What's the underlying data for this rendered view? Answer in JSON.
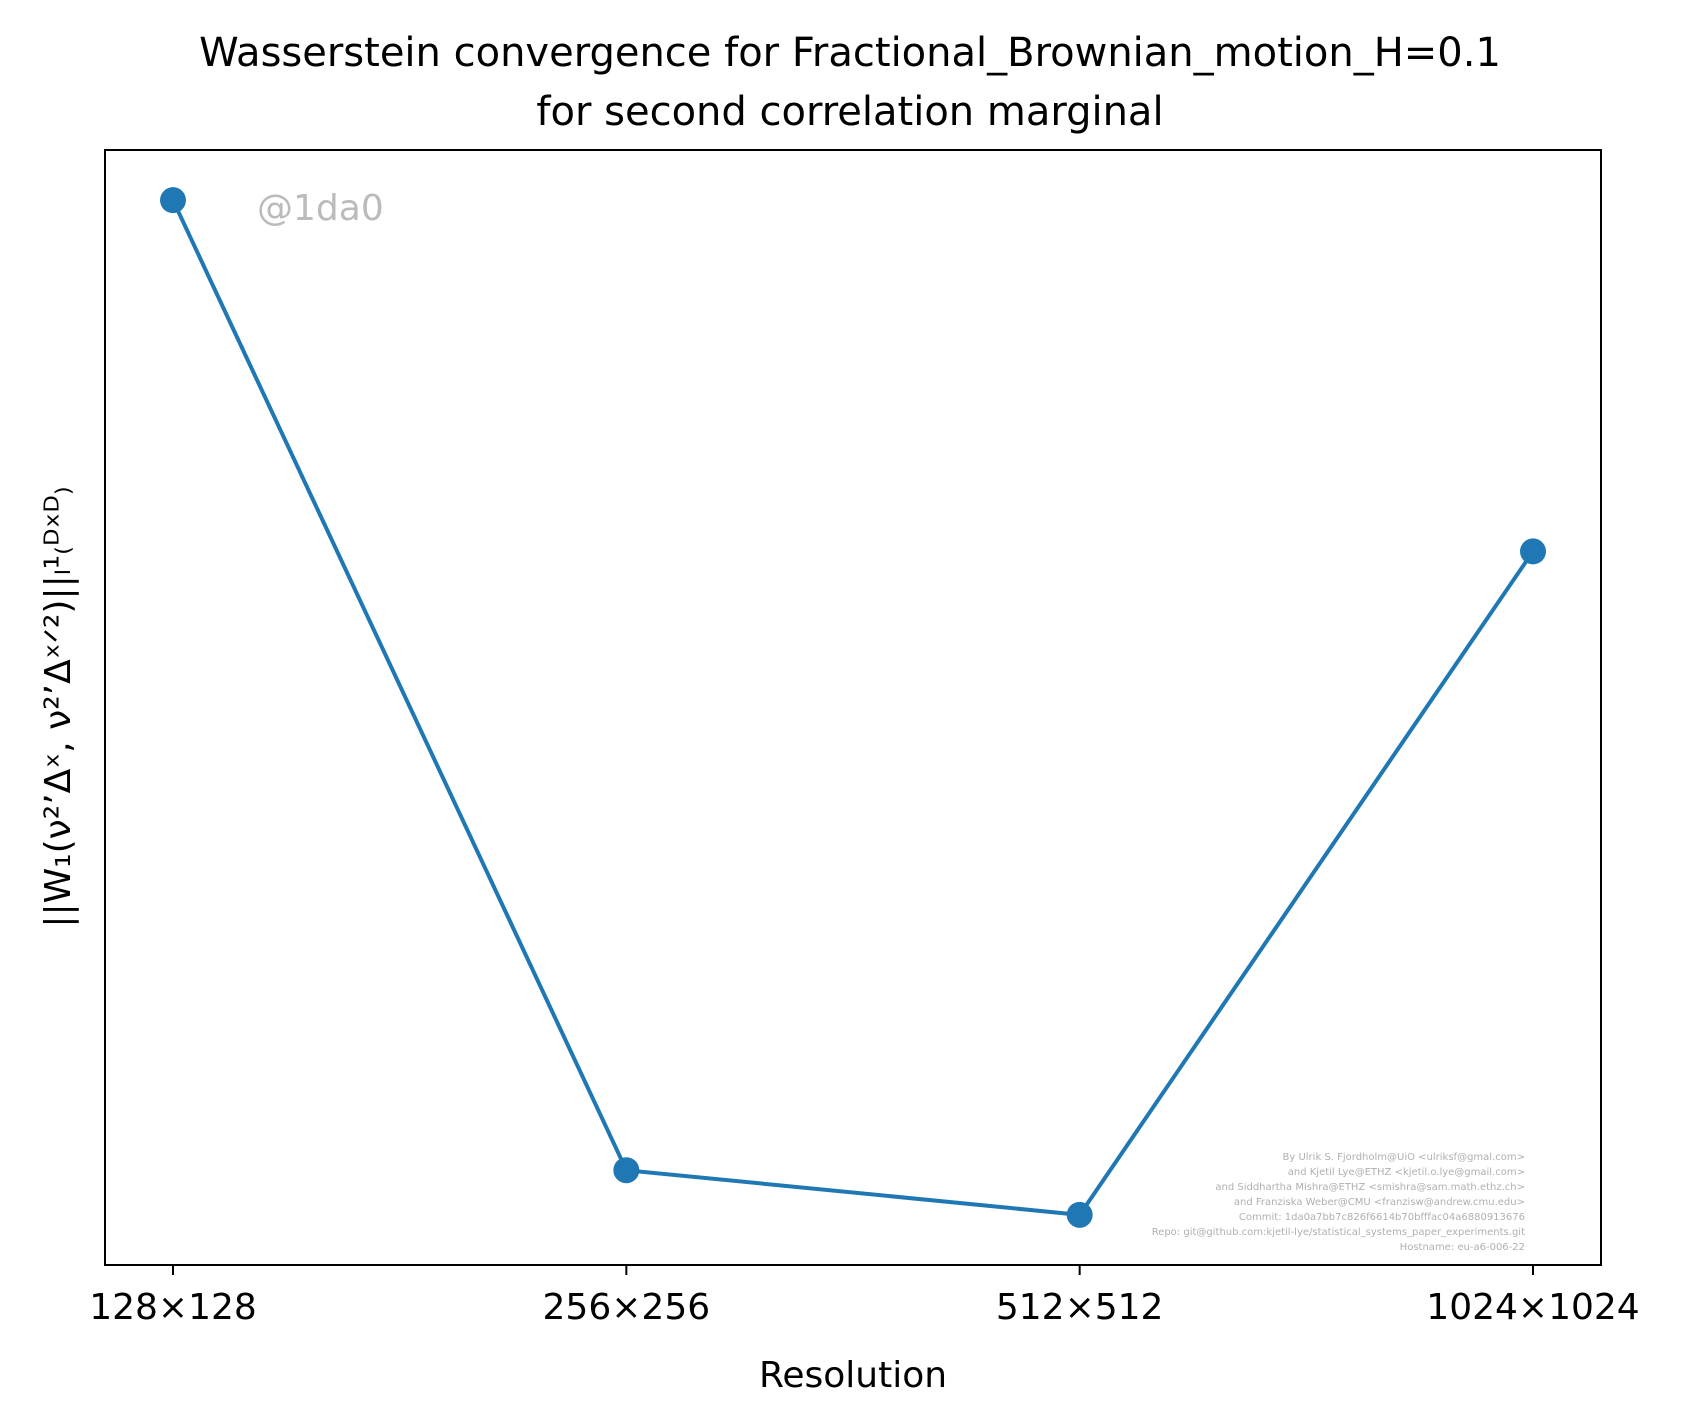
{
  "chart_data": {
    "type": "line",
    "title_lines": [
      "Wasserstein convergence for Fractional_Brownian_motion_H=0.1",
      "for second correlation marginal"
    ],
    "xlabel": "Resolution",
    "ylabel": "||W₁(ν²ʼΔˣ, ν²ʼΔˣᐟ²)||ₗ¹₍ᴰˣᴰ₎",
    "categories": [
      "128×128",
      "256×256",
      "512×512",
      "1024×1024"
    ],
    "series": [
      {
        "values": [
          1.0,
          0.13,
          0.09,
          0.685
        ],
        "color": "#1f77b4",
        "marker": "circle"
      }
    ],
    "ylim": [
      0.045,
      1.045
    ],
    "y_ticks_visible": false,
    "grid": false,
    "legend": "none"
  },
  "watermark": "@1da0",
  "credits": [
    "By Ulrik S. Fjordholm@UiO <ulriksf@gmal.com>",
    "and Kjetil Lye@ETHZ <kjetil.o.lye@gmail.com>",
    "and Siddhartha Mishra@ETHZ <smishra@sam.math.ethz.ch>",
    "and Franziska Weber@CMU <franzisw@andrew.cmu.edu>",
    "Commit: 1da0a7bb7c826f6614b70bfffac04a6880913676",
    "Repo: git@github.com:kjetil-lye/statistical_systems_paper_experiments.git",
    "Hostname: eu-a6-006-22"
  ]
}
